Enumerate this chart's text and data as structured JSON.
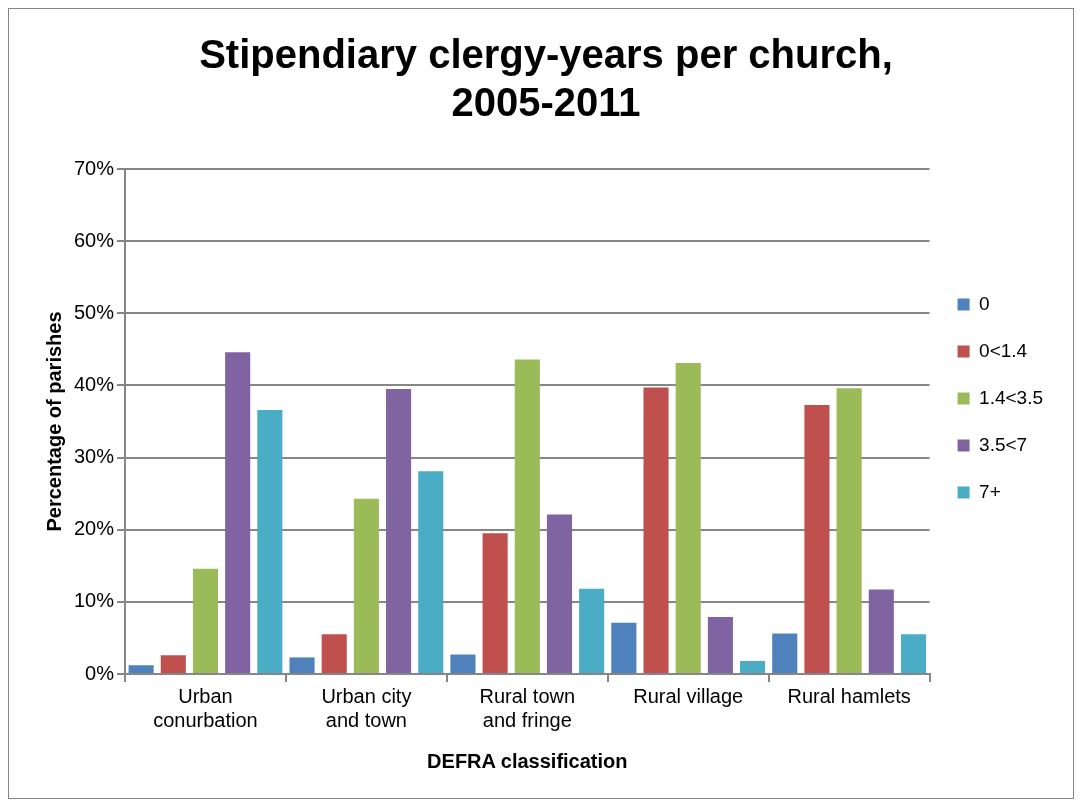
{
  "chart_data": {
    "type": "bar",
    "title": "Stipendiary clergy-years per church, 2005-2011",
    "xlabel": "DEFRA classification",
    "ylabel": "Percentage of parishes",
    "categories": [
      "Urban conurbation",
      "Urban city and town",
      "Rural town and fringe",
      "Rural village",
      "Rural hamlets"
    ],
    "series": [
      {
        "name": "0",
        "color": "#4f81bd",
        "values": [
          1.2,
          2.3,
          2.7,
          7.1,
          5.6
        ]
      },
      {
        "name": "0<1.4",
        "color": "#c0504d",
        "values": [
          2.6,
          5.5,
          19.5,
          39.7,
          37.3
        ]
      },
      {
        "name": "1.4<3.5",
        "color": "#9bbb59",
        "values": [
          14.6,
          24.3,
          43.6,
          43.1,
          39.6
        ]
      },
      {
        "name": "3.5<7",
        "color": "#8064a2",
        "values": [
          44.6,
          39.5,
          22.1,
          7.9,
          11.7
        ]
      },
      {
        "name": "7+",
        "color": "#4bacc6",
        "values": [
          36.6,
          28.1,
          11.8,
          1.8,
          5.5
        ]
      }
    ],
    "ylim": [
      0,
      70
    ],
    "yticks": [
      {
        "value": 0,
        "label": "0%"
      },
      {
        "value": 10,
        "label": "10%"
      },
      {
        "value": 20,
        "label": "20%"
      },
      {
        "value": 30,
        "label": "30%"
      },
      {
        "value": 40,
        "label": "40%"
      },
      {
        "value": 50,
        "label": "50%"
      },
      {
        "value": 60,
        "label": "60%"
      },
      {
        "value": 70,
        "label": "70%"
      }
    ],
    "grid": "y",
    "legend": "right"
  }
}
